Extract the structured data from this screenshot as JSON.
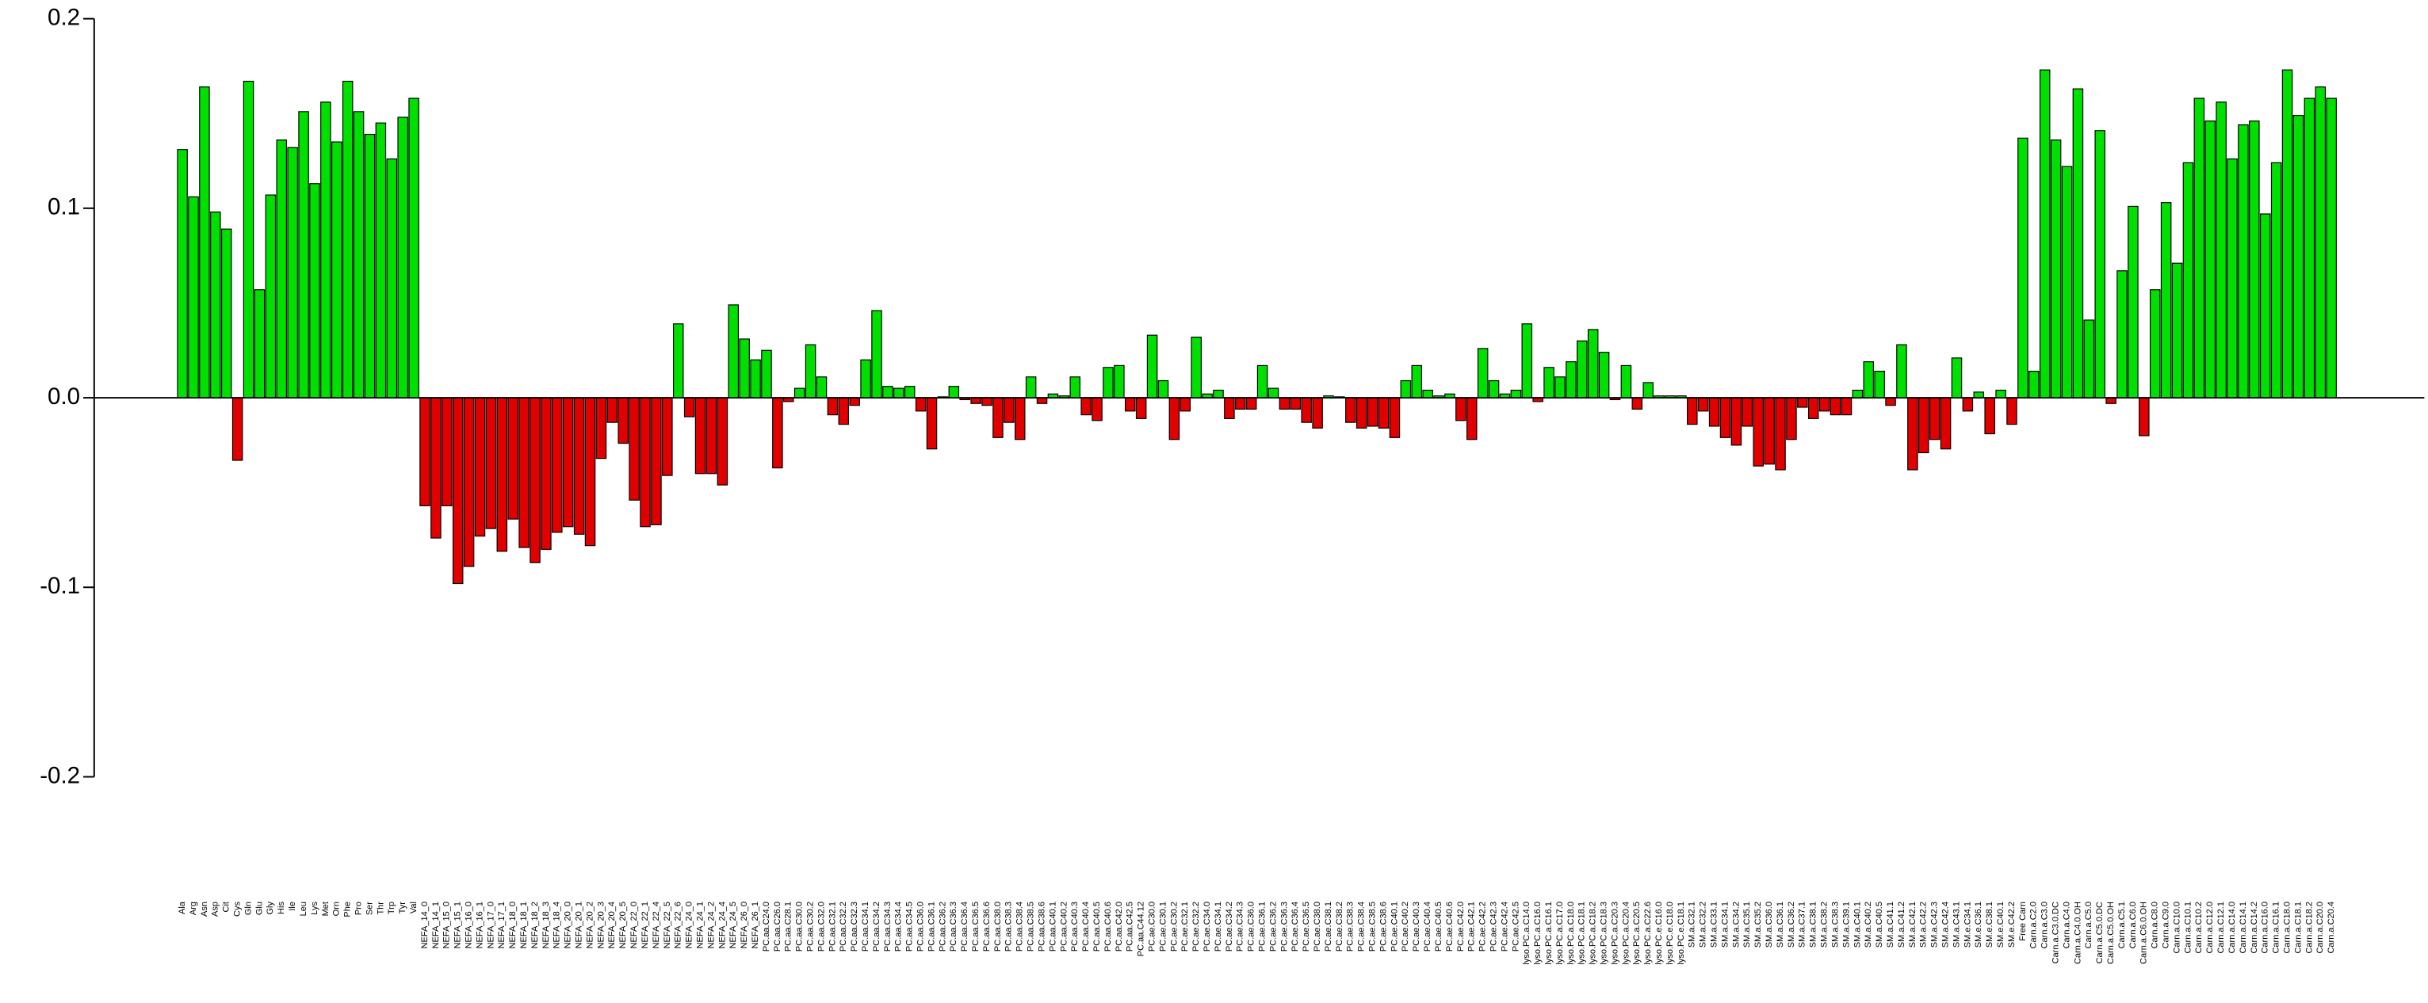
{
  "chart_data": {
    "type": "bar",
    "categories": [
      "Ala",
      "Arg",
      "Asn",
      "Asp",
      "Cit",
      "Cys",
      "Gln",
      "Glu",
      "Gly",
      "His",
      "Ile",
      "Leu",
      "Lys",
      "Met",
      "Orn",
      "Phe",
      "Pro",
      "Ser",
      "Thr",
      "Trp",
      "Tyr",
      "Val",
      "NEFA_14_0",
      "NEFA_14_1",
      "NEFA_15_0",
      "NEFA_15_1",
      "NEFA_16_0",
      "NEFA_16_1",
      "NEFA_17_0",
      "NEFA_17_1",
      "NEFA_18_0",
      "NEFA_18_1",
      "NEFA_18_2",
      "NEFA_18_3",
      "NEFA_18_4",
      "NEFA_20_0",
      "NEFA_20_1",
      "NEFA_20_2",
      "NEFA_20_3",
      "NEFA_20_4",
      "NEFA_20_5",
      "NEFA_22_0",
      "NEFA_22_1",
      "NEFA_22_4",
      "NEFA_22_5",
      "NEFA_22_6",
      "NEFA_24_0",
      "NEFA_24_1",
      "NEFA_24_2",
      "NEFA_24_4",
      "NEFA_24_5",
      "NEFA_26_0",
      "NEFA_26_1",
      "PC.aa.C24.0",
      "PC.aa.C26.0",
      "PC.aa.C28.1",
      "PC.aa.C30.0",
      "PC.aa.C30.2",
      "PC.aa.C32.0",
      "PC.aa.C32.1",
      "PC.aa.C32.2",
      "PC.aa.C32.3",
      "PC.aa.C34.1",
      "PC.aa.C34.2",
      "PC.aa.C34.3",
      "PC.aa.C34.4",
      "PC.aa.C34.5",
      "PC.aa.C36.0",
      "PC.aa.C36.1",
      "PC.aa.C36.2",
      "PC.aa.C36.3",
      "PC.aa.C36.4",
      "PC.aa.C36.5",
      "PC.aa.C36.6",
      "PC.aa.C38.0",
      "PC.aa.C38.3",
      "PC.aa.C38.4",
      "PC.aa.C38.5",
      "PC.aa.C38.6",
      "PC.aa.C40.1",
      "PC.aa.C40.2",
      "PC.aa.C40.3",
      "PC.aa.C40.4",
      "PC.aa.C40.5",
      "PC.aa.C40.6",
      "PC.aa.C42.0",
      "PC.aa.C42.5",
      "PC.aa.C44.12",
      "PC.ae.C30.0",
      "PC.ae.C30.1",
      "PC.ae.C30.2",
      "PC.ae.C32.1",
      "PC.ae.C32.2",
      "PC.ae.C34.0",
      "PC.ae.C34.1",
      "PC.ae.C34.2",
      "PC.ae.C34.3",
      "PC.ae.C36.0",
      "PC.ae.C36.1",
      "PC.ae.C36.2",
      "PC.ae.C36.3",
      "PC.ae.C36.4",
      "PC.ae.C36.5",
      "PC.ae.C38.0",
      "PC.ae.C38.1",
      "PC.ae.C38.2",
      "PC.ae.C38.3",
      "PC.ae.C38.4",
      "PC.ae.C38.5",
      "PC.ae.C38.6",
      "PC.ae.C40.1",
      "PC.ae.C40.2",
      "PC.ae.C40.3",
      "PC.ae.C40.4",
      "PC.ae.C40.5",
      "PC.ae.C40.6",
      "PC.ae.C42.0",
      "PC.ae.C42.1",
      "PC.ae.C42.2",
      "PC.ae.C42.3",
      "PC.ae.C42.4",
      "PC.ae.C42.5",
      "lyso.PC.a.C14.0",
      "lyso.PC.a.C16.0",
      "lyso.PC.a.C16.1",
      "lyso.PC.a.C17.0",
      "lyso.PC.a.C18.0",
      "lyso.PC.a.C18.1",
      "lyso.PC.a.C18.2",
      "lyso.PC.a.C18.3",
      "lyso.PC.a.C20.3",
      "lyso.PC.a.C20.4",
      "lyso.PC.a.C20.5",
      "lyso.PC.a.C22.6",
      "lyso.PC.e.C16.0",
      "lyso.PC.e.C18.0",
      "lyso.PC.e.C18.1",
      "SM.a.C32.1",
      "SM.a.C32.2",
      "SM.a.C33.1",
      "SM.a.C34.1",
      "SM.a.C34.2",
      "SM.a.C35.1",
      "SM.a.C35.2",
      "SM.a.C36.0",
      "SM.a.C36.1",
      "SM.a.C36.2",
      "SM.a.C37.1",
      "SM.a.C38.1",
      "SM.a.C38.2",
      "SM.a.C38.3",
      "SM.a.C39.1",
      "SM.a.C40.1",
      "SM.a.C40.2",
      "SM.a.C40.5",
      "SM.a.C41.1",
      "SM.a.C41.2",
      "SM.a.C42.1",
      "SM.a.C42.2",
      "SM.a.C42.3",
      "SM.a.C42.4",
      "SM.a.C43.1",
      "SM.e.C34.1",
      "SM.e.C36.1",
      "SM.e.C38.1",
      "SM.e.C40.1",
      "SM.e.C42.2",
      "Free Carn",
      "Carn.a.C2.0",
      "Carn.a.C3.0",
      "Carn.a.C3.0.DC",
      "Carn.a.C4.0",
      "Carn.a.C4.0.OH",
      "Carn.a.C5.0",
      "Carn.a.C5.0.DC",
      "Carn.a.C5.0.OH",
      "Carn.a.C5.1",
      "Carn.a.C6.0",
      "Carn.a.C6.0.OH",
      "Carn.a.C8.0",
      "Carn.a.C9.0",
      "Carn.a.C10.0",
      "Carn.a.C10.1",
      "Carn.a.C10.2",
      "Carn.a.C12.0",
      "Carn.a.C12.1",
      "Carn.a.C14.0",
      "Carn.a.C14.1",
      "Carn.a.C14.2",
      "Carn.a.C16.0",
      "Carn.a.C16.1",
      "Carn.a.C18.0",
      "Carn.a.C18.1",
      "Carn.a.C18.2",
      "Carn.a.C20.0",
      "Carn.a.C20.4"
    ],
    "values": [
      0.131,
      0.106,
      0.164,
      0.098,
      0.089,
      -0.033,
      0.167,
      0.057,
      0.107,
      0.136,
      0.132,
      0.151,
      0.113,
      0.156,
      0.135,
      0.167,
      0.151,
      0.139,
      0.145,
      0.126,
      0.148,
      0.158,
      -0.057,
      -0.074,
      -0.057,
      -0.098,
      -0.089,
      -0.073,
      -0.069,
      -0.081,
      -0.064,
      -0.079,
      -0.087,
      -0.08,
      -0.071,
      -0.068,
      -0.072,
      -0.078,
      -0.032,
      -0.013,
      -0.024,
      -0.054,
      -0.068,
      -0.067,
      -0.041,
      0.039,
      -0.01,
      -0.04,
      -0.04,
      -0.046,
      0.049,
      0.031,
      0.02,
      0.025,
      -0.037,
      -0.002,
      0.005,
      0.028,
      0.011,
      -0.009,
      -0.014,
      -0.004,
      0.02,
      0.046,
      0.006,
      0.005,
      0.006,
      -0.007,
      -0.027,
      0.0005,
      0.006,
      -0.001,
      -0.003,
      -0.004,
      -0.021,
      -0.013,
      -0.022,
      0.011,
      -0.003,
      0.002,
      0.001,
      0.011,
      -0.009,
      -0.012,
      0.016,
      0.017,
      -0.007,
      -0.011,
      0.033,
      0.009,
      -0.022,
      -0.007,
      0.032,
      0.002,
      0.004,
      -0.011,
      -0.006,
      -0.006,
      0.017,
      0.005,
      -0.006,
      -0.006,
      -0.013,
      -0.016,
      0.001,
      0.0005,
      -0.013,
      -0.016,
      -0.015,
      -0.016,
      -0.021,
      0.009,
      0.017,
      0.004,
      0.001,
      0.002,
      -0.012,
      -0.022,
      0.026,
      0.009,
      0.002,
      0.004,
      0.039,
      -0.002,
      0.016,
      0.011,
      0.019,
      0.03,
      0.036,
      0.024,
      -0.001,
      0.017,
      -0.006,
      0.008,
      0.001,
      0.001,
      0.001,
      -0.014,
      -0.007,
      -0.015,
      -0.021,
      -0.025,
      -0.015,
      -0.036,
      -0.035,
      -0.038,
      -0.022,
      -0.005,
      -0.011,
      -0.007,
      -0.009,
      -0.009,
      0.004,
      0.019,
      0.014,
      -0.004,
      0.028,
      -0.038,
      -0.029,
      -0.022,
      -0.027,
      0.021,
      -0.007,
      0.003,
      -0.019,
      0.004,
      -0.014,
      0.137,
      0.014,
      0.173,
      0.136,
      0.122,
      0.163,
      0.041,
      0.141,
      -0.003,
      0.067,
      0.101,
      -0.02,
      0.057,
      0.103,
      0.071,
      0.124,
      0.158,
      0.146,
      0.156,
      0.126,
      0.144,
      0.146,
      0.097,
      0.124,
      0.173,
      0.149,
      0.158,
      0.164,
      0.158
    ],
    "positive_color": "#00e000",
    "negative_color": "#e00000",
    "ylim": [
      -0.2,
      0.2
    ],
    "yticks": [
      -0.2,
      -0.1,
      {
        "value": 0,
        "label": "0.0"
      },
      0.1,
      0.2
    ],
    "zero_line": true
  }
}
